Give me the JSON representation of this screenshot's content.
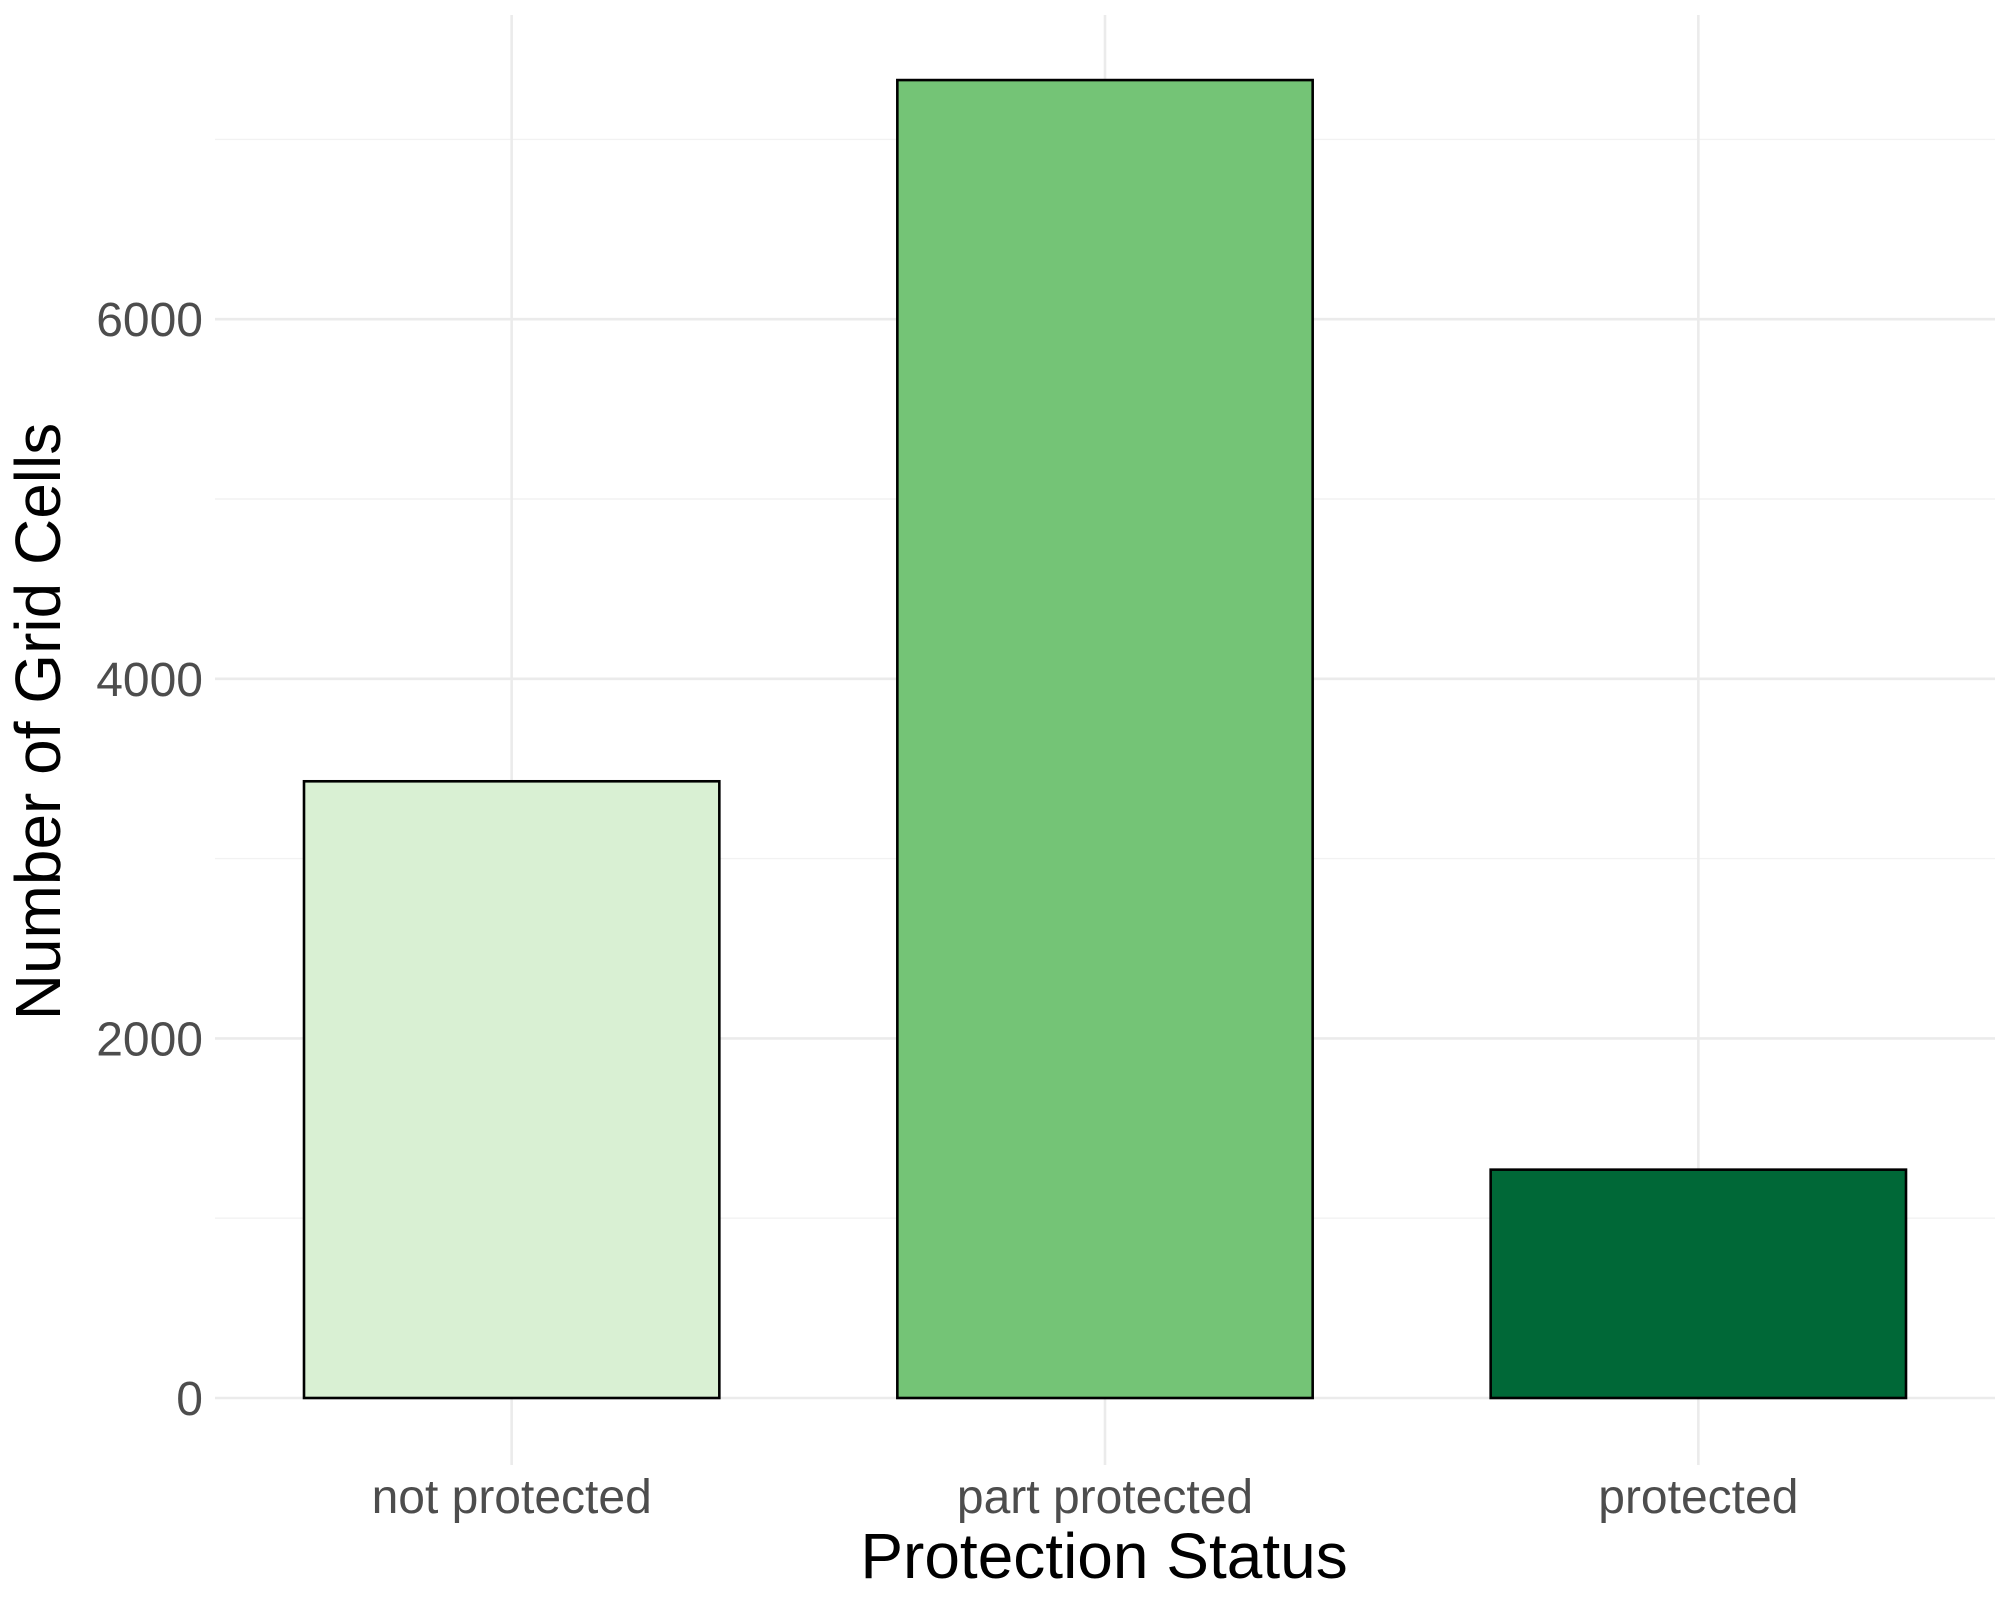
{
  "chart_data": {
    "type": "bar",
    "title": "",
    "xlabel": "Protection Status",
    "ylabel": "Number of Grid Cells",
    "categories": [
      "not protected",
      "part protected",
      "protected"
    ],
    "values": [
      3430,
      7330,
      1270
    ],
    "colors": [
      "#d9f0d3",
      "#74c476",
      "#006837"
    ],
    "bar_outline_color": "#000000",
    "ylim": [
      0,
      7700
    ],
    "y_ticks": [
      0,
      2000,
      4000,
      6000
    ],
    "y_tick_labels": [
      "0",
      "2000",
      "4000",
      "6000"
    ],
    "y_minor_ticks": [
      1000,
      3000,
      5000,
      7000
    ],
    "grid": true,
    "legend": "none"
  }
}
